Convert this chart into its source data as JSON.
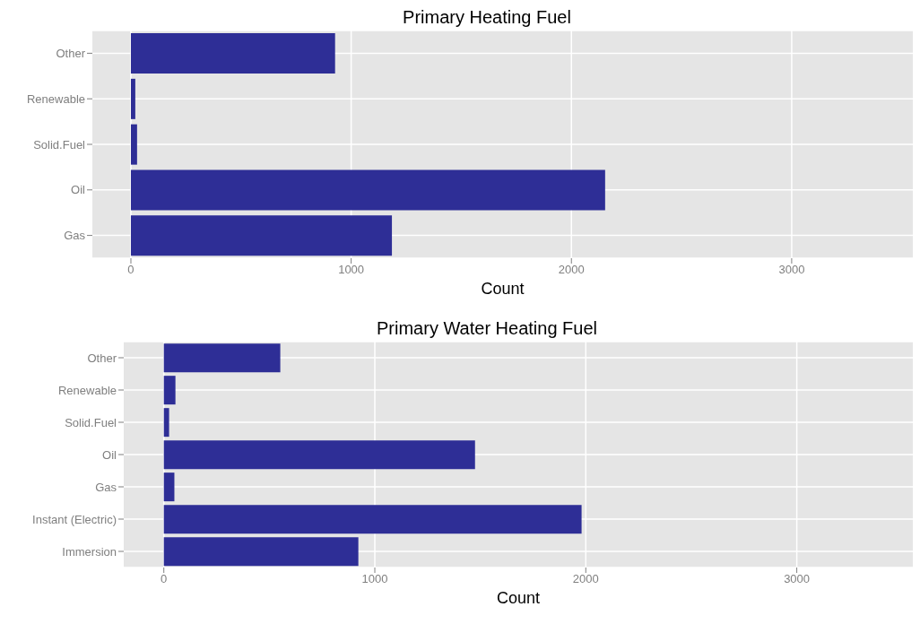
{
  "chart_data": [
    {
      "type": "bar",
      "orientation": "horizontal",
      "title": "Primary Heating Fuel",
      "xlabel": "Count",
      "categories": [
        "Other",
        "Renewable",
        "Solid.Fuel",
        "Oil",
        "Gas"
      ],
      "values": [
        927,
        20,
        28,
        2153,
        1185
      ],
      "color": "#2e2e96",
      "xlim": [
        -175,
        3550
      ],
      "xticks": [
        0,
        1000,
        2000,
        3000
      ],
      "grid": true
    },
    {
      "type": "bar",
      "orientation": "horizontal",
      "title": "Primary Water Heating Fuel",
      "xlabel": "Count",
      "categories": [
        "Other",
        "Renewable",
        "Solid.Fuel",
        "Oil",
        "Gas",
        "Instant (Electric)",
        "Immersion"
      ],
      "values": [
        552,
        55,
        25,
        1475,
        50,
        1980,
        922
      ],
      "color": "#2e2e96",
      "xlim": [
        -190,
        3550
      ],
      "xticks": [
        0,
        1000,
        2000,
        3000
      ],
      "grid": true
    }
  ]
}
